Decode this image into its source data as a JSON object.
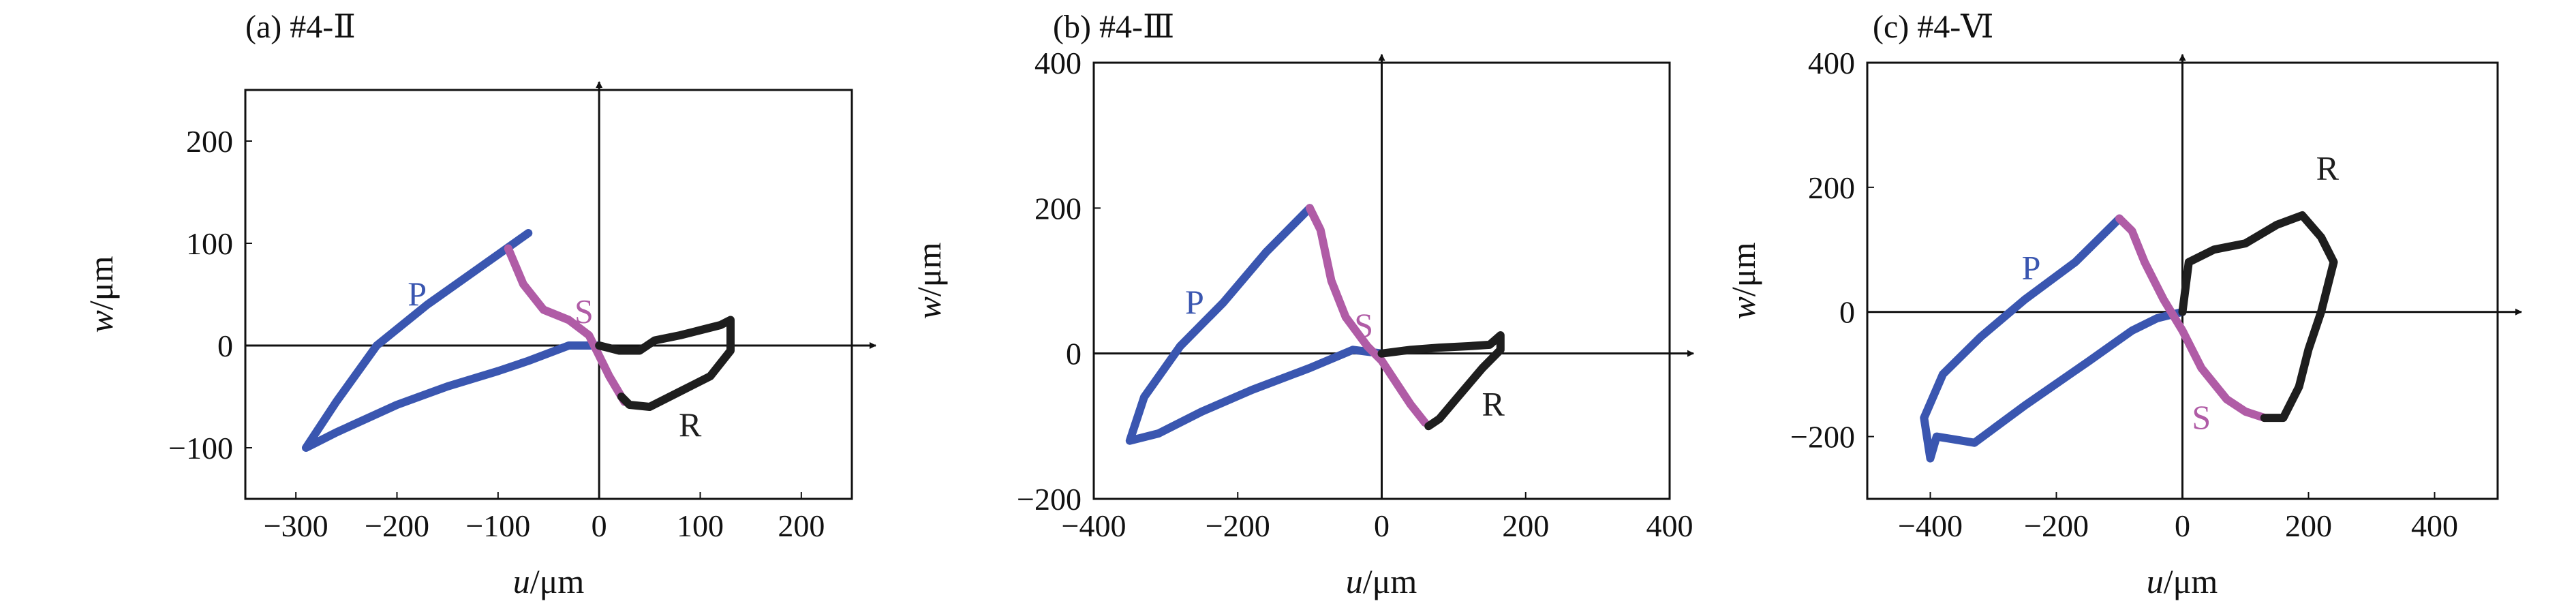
{
  "figure": {
    "colors": {
      "P": "#3a56b0",
      "S": "#b05ca6",
      "R": "#1e1e1e",
      "axis": "#111111"
    }
  },
  "chart_data": [
    {
      "type": "line",
      "panel_label": "(a) #4-Ⅱ",
      "xlabel_var": "u",
      "xlabel_unit": "/μm",
      "ylabel_var": "w",
      "ylabel_unit": "/μm",
      "xlim": [
        -350,
        250
      ],
      "ylim": [
        -150,
        250
      ],
      "xticks": [
        -300,
        -200,
        -100,
        0,
        100,
        200
      ],
      "yticks": [
        -100,
        0,
        100,
        200
      ],
      "xtick_labels": [
        "−300",
        "−200",
        "−100",
        "0",
        "100",
        "200"
      ],
      "ytick_labels": [
        "−100",
        "0",
        "100",
        "200"
      ],
      "grid": false,
      "series": [
        {
          "name": "P",
          "label_at": [
            -180,
            50
          ],
          "points": [
            [
              -70,
              110
            ],
            [
              -120,
              75
            ],
            [
              -170,
              40
            ],
            [
              -220,
              0
            ],
            [
              -260,
              -55
            ],
            [
              -290,
              -100
            ],
            [
              -260,
              -85
            ],
            [
              -200,
              -58
            ],
            [
              -150,
              -40
            ],
            [
              -100,
              -25
            ],
            [
              -70,
              -15
            ],
            [
              -30,
              0
            ],
            [
              0,
              0
            ]
          ]
        },
        {
          "name": "S",
          "label_at": [
            -15,
            33
          ],
          "points": [
            [
              -90,
              95
            ],
            [
              -75,
              60
            ],
            [
              -55,
              35
            ],
            [
              -30,
              25
            ],
            [
              -10,
              10
            ],
            [
              0,
              -10
            ],
            [
              10,
              -30
            ],
            [
              25,
              -55
            ]
          ]
        },
        {
          "name": "R",
          "label_at": [
            90,
            -78
          ],
          "points": [
            [
              0,
              0
            ],
            [
              20,
              -5
            ],
            [
              40,
              -5
            ],
            [
              55,
              5
            ],
            [
              80,
              10
            ],
            [
              100,
              15
            ],
            [
              120,
              20
            ],
            [
              130,
              25
            ],
            [
              130,
              -5
            ],
            [
              110,
              -30
            ],
            [
              80,
              -45
            ],
            [
              50,
              -60
            ],
            [
              30,
              -58
            ],
            [
              22,
              -50
            ]
          ]
        }
      ]
    },
    {
      "type": "line",
      "panel_label": "(b) #4-Ⅲ",
      "xlabel_var": "u",
      "xlabel_unit": "/μm",
      "ylabel_var": "w",
      "ylabel_unit": "/μm",
      "xlim": [
        -400,
        400
      ],
      "ylim": [
        -200,
        400
      ],
      "xticks": [
        -400,
        -200,
        0,
        200,
        400
      ],
      "yticks": [
        -200,
        0,
        200,
        400
      ],
      "xtick_labels": [
        "−400",
        "−200",
        "0",
        "200",
        "400"
      ],
      "ytick_labels": [
        "−200",
        "0",
        "200",
        "400"
      ],
      "grid": false,
      "series": [
        {
          "name": "P",
          "label_at": [
            -260,
            70
          ],
          "points": [
            [
              -100,
              200
            ],
            [
              -160,
              140
            ],
            [
              -220,
              70
            ],
            [
              -280,
              10
            ],
            [
              -330,
              -60
            ],
            [
              -350,
              -120
            ],
            [
              -310,
              -110
            ],
            [
              -250,
              -80
            ],
            [
              -180,
              -50
            ],
            [
              -100,
              -20
            ],
            [
              -40,
              5
            ],
            [
              0,
              0
            ]
          ]
        },
        {
          "name": "S",
          "label_at": [
            -25,
            38
          ],
          "points": [
            [
              -100,
              200
            ],
            [
              -85,
              170
            ],
            [
              -70,
              100
            ],
            [
              -50,
              50
            ],
            [
              -20,
              10
            ],
            [
              0,
              -10
            ],
            [
              20,
              -40
            ],
            [
              40,
              -70
            ],
            [
              60,
              -95
            ]
          ]
        },
        {
          "name": "R",
          "label_at": [
            155,
            -70
          ],
          "points": [
            [
              0,
              0
            ],
            [
              40,
              5
            ],
            [
              80,
              8
            ],
            [
              120,
              10
            ],
            [
              150,
              12
            ],
            [
              165,
              25
            ],
            [
              165,
              5
            ],
            [
              140,
              -20
            ],
            [
              110,
              -55
            ],
            [
              80,
              -90
            ],
            [
              65,
              -100
            ]
          ]
        }
      ]
    },
    {
      "type": "line",
      "panel_label": "(c) #4-Ⅵ",
      "xlabel_var": "u",
      "xlabel_unit": "/μm",
      "ylabel_var": "w",
      "ylabel_unit": "/μm",
      "xlim": [
        -500,
        500
      ],
      "ylim": [
        -300,
        400
      ],
      "xticks": [
        -400,
        -200,
        0,
        200,
        400
      ],
      "yticks": [
        -200,
        0,
        200,
        400
      ],
      "xtick_labels": [
        "−400",
        "−200",
        "0",
        "200",
        "400"
      ],
      "ytick_labels": [
        "−200",
        "0",
        "200",
        "400"
      ],
      "grid": false,
      "series": [
        {
          "name": "P",
          "label_at": [
            -240,
            70
          ],
          "points": [
            [
              -100,
              150
            ],
            [
              -170,
              80
            ],
            [
              -250,
              20
            ],
            [
              -320,
              -40
            ],
            [
              -380,
              -100
            ],
            [
              -410,
              -170
            ],
            [
              -400,
              -235
            ],
            [
              -390,
              -200
            ],
            [
              -360,
              -205
            ],
            [
              -330,
              -210
            ],
            [
              -250,
              -150
            ],
            [
              -150,
              -80
            ],
            [
              -80,
              -30
            ],
            [
              -40,
              -10
            ],
            [
              0,
              0
            ]
          ]
        },
        {
          "name": "S",
          "label_at": [
            30,
            -170
          ],
          "points": [
            [
              -100,
              150
            ],
            [
              -80,
              130
            ],
            [
              -60,
              80
            ],
            [
              -30,
              20
            ],
            [
              0,
              -30
            ],
            [
              30,
              -90
            ],
            [
              70,
              -140
            ],
            [
              100,
              -160
            ],
            [
              130,
              -170
            ]
          ]
        },
        {
          "name": "R",
          "label_at": [
            230,
            230
          ],
          "points": [
            [
              0,
              0
            ],
            [
              10,
              80
            ],
            [
              50,
              100
            ],
            [
              100,
              110
            ],
            [
              150,
              140
            ],
            [
              190,
              155
            ],
            [
              220,
              120
            ],
            [
              240,
              80
            ],
            [
              220,
              0
            ],
            [
              200,
              -60
            ],
            [
              185,
              -120
            ],
            [
              160,
              -170
            ],
            [
              130,
              -170
            ]
          ]
        }
      ]
    }
  ]
}
